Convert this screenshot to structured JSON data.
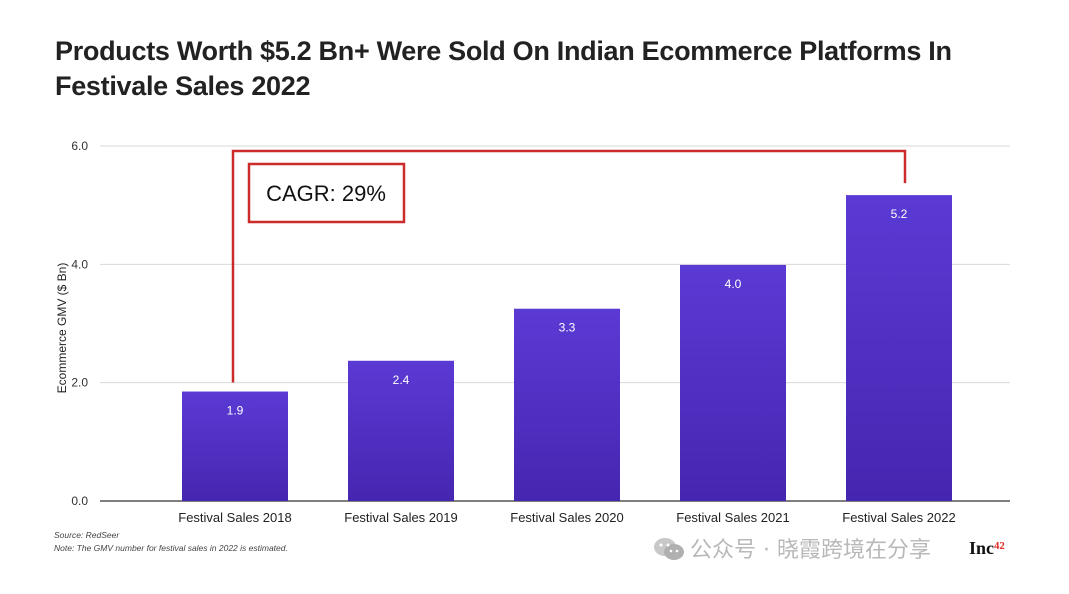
{
  "chart_data": {
    "type": "bar",
    "title": "Products Worth $5.2 Bn+ Were Sold On Indian Ecommerce Platforms In Festivale Sales 2022",
    "categories": [
      "Festival Sales 2018",
      "Festival Sales 2019",
      "Festival Sales 2020",
      "Festival Sales 2021",
      "Festival Sales 2022"
    ],
    "values": [
      1.85,
      2.37,
      3.25,
      3.99,
      5.17
    ],
    "data_labels": [
      "1.9",
      "2.4",
      "3.3",
      "4.0",
      "5.2"
    ],
    "ylabel": "Ecommerce GMV ($ Bn)",
    "xlabel": "",
    "ylim": [
      0,
      6
    ],
    "yticks": [
      "0.0",
      "2.0",
      "4.0",
      "6.0"
    ],
    "ytick_values": [
      0,
      2,
      4,
      6
    ],
    "grid": true,
    "bar_color": "#4e2fc0",
    "bar_color_top": "#5a3bd0",
    "annotation": {
      "text": "CAGR: 29%",
      "color": "#cc2b2b",
      "from_category": 0,
      "to_category": 4
    }
  },
  "source": "Source: RedSeer",
  "note": "Note: The GMV number for festival sales in 2022 is estimated.",
  "logo": "Inc",
  "watermark": "公众号 · 晓霞跨境在分享"
}
